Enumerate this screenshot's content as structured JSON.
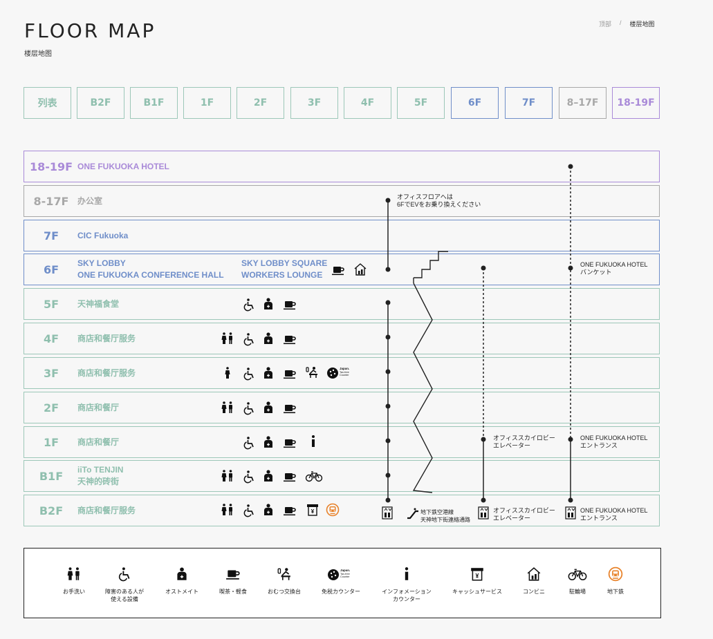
{
  "header": {
    "title": "FLOOR MAP",
    "subtitle": "楼层地图"
  },
  "breadcrumb": {
    "home": "顶部",
    "separator": "/",
    "current": "楼层地图"
  },
  "tabs": [
    {
      "label": "列表",
      "color": "green"
    },
    {
      "label": "B2F",
      "color": "green"
    },
    {
      "label": "B1F",
      "color": "green"
    },
    {
      "label": "1F",
      "color": "green"
    },
    {
      "label": "2F",
      "color": "green"
    },
    {
      "label": "3F",
      "color": "green"
    },
    {
      "label": "4F",
      "color": "green"
    },
    {
      "label": "5F",
      "color": "green"
    },
    {
      "label": "6F",
      "color": "blue"
    },
    {
      "label": "7F",
      "color": "blue"
    },
    {
      "label": "8–17F",
      "color": "gray"
    },
    {
      "label": "18-19F",
      "color": "purple"
    }
  ],
  "floors": [
    {
      "label": "18-19F",
      "name": "ONE FUKUOKA HOTEL",
      "name_line2": "",
      "color": "purple"
    },
    {
      "label": "8-17F",
      "name": "办公室",
      "name_line2": "",
      "color": "gray"
    },
    {
      "label": "7F",
      "name": "CIC Fukuoka",
      "name_line2": "",
      "color": "blue"
    },
    {
      "label": "6F",
      "name": "SKY LOBBY",
      "name_line2": "ONE FUKUOKA CONFERENCE HALL",
      "name2": "SKY LOBBY SQUARE",
      "name2_line2": "WORKERS LOUNGE",
      "color": "blue"
    },
    {
      "label": "5F",
      "name": "天神福食堂",
      "name_line2": "",
      "color": "green"
    },
    {
      "label": "4F",
      "name": "商店和餐厅服务",
      "name_line2": "",
      "color": "green"
    },
    {
      "label": "3F",
      "name": "商店和餐厅服务",
      "name_line2": "",
      "color": "green"
    },
    {
      "label": "2F",
      "name": "商店和餐厅",
      "name_line2": "",
      "color": "green"
    },
    {
      "label": "1F",
      "name": "商店和餐厅",
      "name_line2": "",
      "color": "green"
    },
    {
      "label": "B1F",
      "name": "iiTo TENJIN",
      "name_line2": "天神的砖街",
      "color": "green"
    },
    {
      "label": "B2F",
      "name": "商店和餐厅服务",
      "name_line2": "",
      "color": "green"
    }
  ],
  "notes": {
    "office_transfer_1": "オフィスフロアへは",
    "office_transfer_2": "6FでEVをお乗り換えください",
    "hotel_banquet_1": "ONE FUKUOKA HOTEL",
    "hotel_banquet_2": "バンケット",
    "sky_lobby_ev_1": "オフィススカイロビー",
    "sky_lobby_ev_2": "エレベーター",
    "hotel_entrance_1": "ONE FUKUOKA HOTEL",
    "hotel_entrance_2": "エントランス",
    "subway_1": "地下鉄空港線",
    "subway_2": "天神地下街連絡通路",
    "b2_sky_lobby_ev_1": "オフィススカイロビー",
    "b2_sky_lobby_ev_2": "エレベーター",
    "b2_hotel_entrance_1": "ONE FUKUOKA HOTEL",
    "b2_hotel_entrance_2": "エントランス"
  },
  "legend": [
    {
      "icon": "restroom-icon",
      "label": "お手洗い",
      "label2": ""
    },
    {
      "icon": "accessible-icon",
      "label": "障害のある人が",
      "label2": "使える設備"
    },
    {
      "icon": "ostomate-icon",
      "label": "オストメイト",
      "label2": ""
    },
    {
      "icon": "cafe-icon",
      "label": "喫茶・軽食",
      "label2": ""
    },
    {
      "icon": "diaper-icon",
      "label": "おむつ交換台",
      "label2": ""
    },
    {
      "icon": "tax-free-icon",
      "label": "免税カウンター",
      "label2": ""
    },
    {
      "icon": "info-icon",
      "label": "インフォメーション",
      "label2": "カウンター"
    },
    {
      "icon": "atm-icon",
      "label": "キャッシュサービス",
      "label2": ""
    },
    {
      "icon": "convenience-store-icon",
      "label": "コンビニ",
      "label2": ""
    },
    {
      "icon": "bicycle-parking-icon",
      "label": "駐輪場",
      "label2": ""
    },
    {
      "icon": "subway-icon",
      "label": "地下鉄",
      "label2": ""
    }
  ],
  "colors": {
    "green": "#9cc7b8",
    "blue": "#6f8ec9",
    "gray": "#a8a8a8",
    "purple": "#a98ad8",
    "subway": "#e8822a"
  },
  "icon_text": {
    "japan_tax_free": "Japan.",
    "tax_free": "Tax-free",
    "counter": "Counter"
  }
}
